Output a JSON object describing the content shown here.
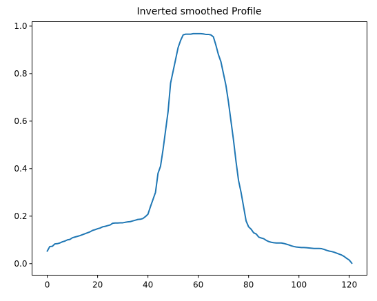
{
  "chart_data": {
    "type": "line",
    "title": "Inverted smoothed Profile",
    "xlabel": "",
    "ylabel": "",
    "xlim": [
      -6.05,
      127.05
    ],
    "ylim": [
      -0.0485,
      1.0185
    ],
    "xticks": [
      0,
      20,
      40,
      60,
      80,
      100,
      120
    ],
    "yticks": [
      0.0,
      0.2,
      0.4,
      0.6,
      0.8,
      1.0
    ],
    "xtick_labels": [
      "0",
      "20",
      "40",
      "60",
      "80",
      "100",
      "120"
    ],
    "ytick_labels": [
      "0.0",
      "0.2",
      "0.4",
      "0.6",
      "0.8",
      "1.0"
    ],
    "grid": false,
    "series": [
      {
        "color": "#1f77b4",
        "x": [
          0,
          1,
          2,
          3,
          4,
          5,
          6,
          7,
          8,
          9,
          10,
          11,
          12,
          13,
          14,
          15,
          16,
          17,
          18,
          19,
          20,
          21,
          22,
          23,
          24,
          25,
          26,
          27,
          28,
          29,
          30,
          31,
          32,
          33,
          34,
          35,
          36,
          37,
          38,
          39,
          40,
          41,
          42,
          43,
          44,
          45,
          46,
          47,
          48,
          49,
          50,
          51,
          52,
          53,
          54,
          55,
          56,
          57,
          58,
          59,
          60,
          61,
          62,
          63,
          64,
          65,
          66,
          67,
          68,
          69,
          70,
          71,
          72,
          73,
          74,
          75,
          76,
          77,
          78,
          79,
          80,
          81,
          82,
          83,
          84,
          85,
          86,
          87,
          88,
          89,
          90,
          91,
          92,
          93,
          94,
          95,
          96,
          97,
          98,
          99,
          100,
          101,
          102,
          103,
          104,
          105,
          106,
          107,
          108,
          109,
          110,
          111,
          112,
          113,
          114,
          115,
          116,
          117,
          118,
          119,
          120,
          121
        ],
        "y": [
          0.053,
          0.072,
          0.073,
          0.083,
          0.084,
          0.087,
          0.092,
          0.095,
          0.1,
          0.102,
          0.109,
          0.112,
          0.115,
          0.118,
          0.122,
          0.126,
          0.13,
          0.134,
          0.14,
          0.143,
          0.147,
          0.15,
          0.155,
          0.157,
          0.16,
          0.163,
          0.17,
          0.171,
          0.171,
          0.172,
          0.172,
          0.174,
          0.176,
          0.177,
          0.18,
          0.183,
          0.186,
          0.187,
          0.19,
          0.198,
          0.208,
          0.24,
          0.27,
          0.3,
          0.38,
          0.41,
          0.48,
          0.56,
          0.64,
          0.76,
          0.81,
          0.86,
          0.91,
          0.94,
          0.963,
          0.966,
          0.966,
          0.966,
          0.968,
          0.968,
          0.968,
          0.968,
          0.967,
          0.965,
          0.965,
          0.963,
          0.955,
          0.92,
          0.88,
          0.85,
          0.8,
          0.75,
          0.68,
          0.6,
          0.52,
          0.43,
          0.35,
          0.3,
          0.24,
          0.18,
          0.155,
          0.145,
          0.13,
          0.125,
          0.112,
          0.108,
          0.105,
          0.098,
          0.093,
          0.09,
          0.088,
          0.087,
          0.087,
          0.087,
          0.085,
          0.082,
          0.079,
          0.075,
          0.072,
          0.07,
          0.069,
          0.068,
          0.068,
          0.067,
          0.066,
          0.065,
          0.064,
          0.064,
          0.064,
          0.063,
          0.06,
          0.056,
          0.053,
          0.051,
          0.048,
          0.044,
          0.04,
          0.036,
          0.03,
          0.022,
          0.015,
          0.002
        ]
      }
    ]
  }
}
